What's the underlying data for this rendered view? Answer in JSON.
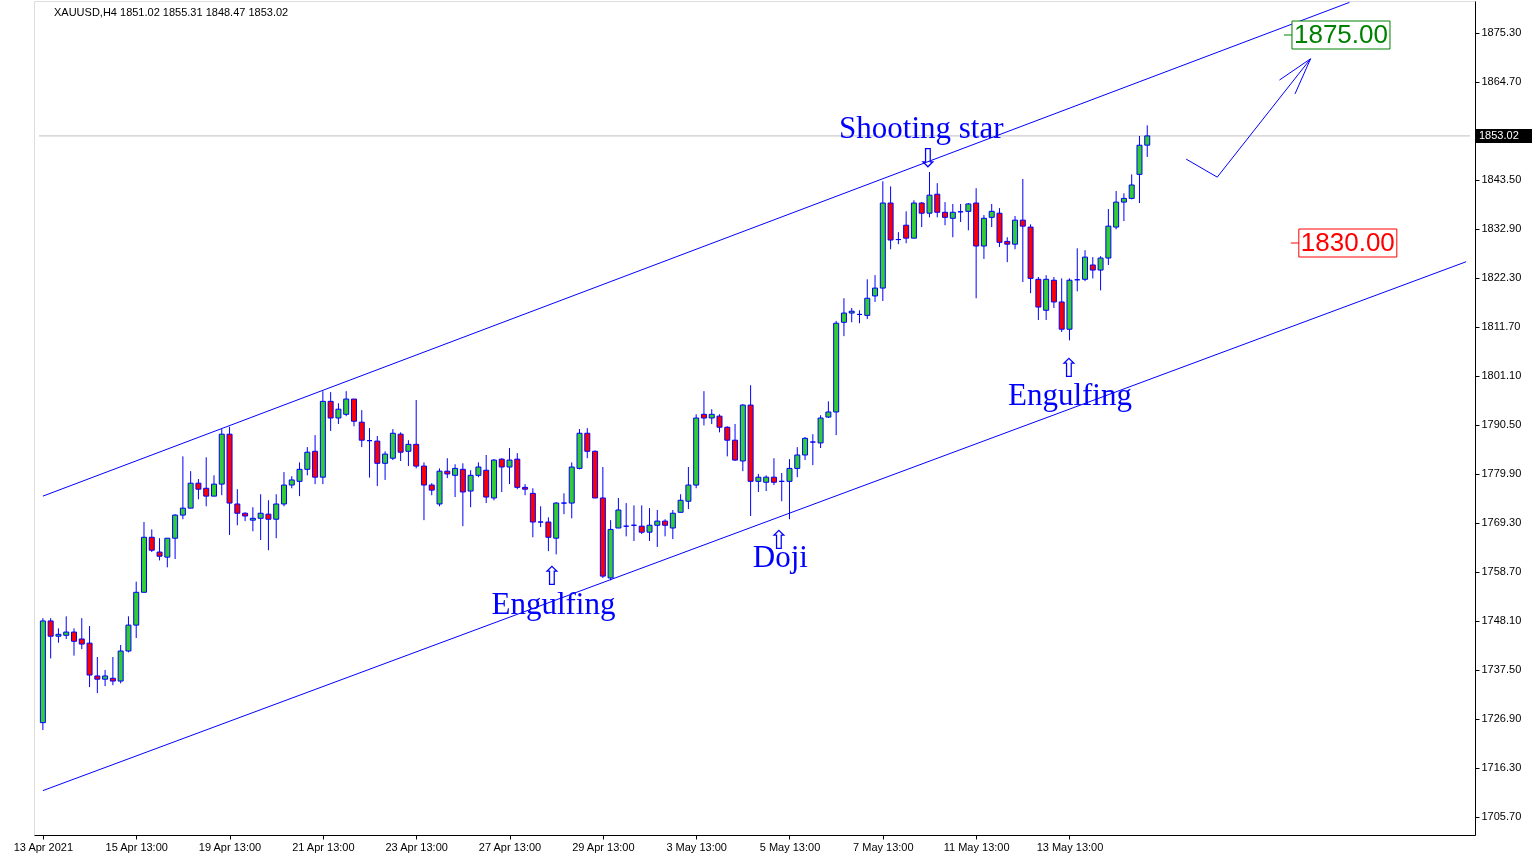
{
  "chart_data": {
    "type": "candlestick",
    "title": "XAUUSD,H4  1851.02 1855.31 1848.47 1853.02",
    "categories": [
      "13 Apr 2021",
      null,
      null,
      null,
      null,
      null,
      null,
      null,
      null,
      null,
      null,
      null,
      "15 Apr 13:00",
      null,
      null,
      null,
      null,
      null,
      null,
      null,
      null,
      null,
      null,
      null,
      "19 Apr 13:00",
      null,
      null,
      null,
      null,
      null,
      null,
      null,
      null,
      null,
      null,
      null,
      "21 Apr 13:00",
      null,
      null,
      null,
      null,
      null,
      null,
      null,
      null,
      null,
      null,
      null,
      "23 Apr 13:00",
      null,
      null,
      null,
      null,
      null,
      null,
      null,
      null,
      null,
      null,
      null,
      "27 Apr 13:00",
      null,
      null,
      null,
      null,
      null,
      null,
      null,
      null,
      null,
      null,
      null,
      "29 Apr 13:00",
      null,
      null,
      null,
      null,
      null,
      null,
      null,
      null,
      null,
      null,
      null,
      "3 May 13:00",
      null,
      null,
      null,
      null,
      null,
      null,
      null,
      null,
      null,
      null,
      null,
      "5 May 13:00",
      null,
      null,
      null,
      null,
      null,
      null,
      null,
      null,
      null,
      null,
      null,
      "7 May 13:00",
      null,
      null,
      null,
      null,
      null,
      null,
      null,
      null,
      null,
      null,
      null,
      "11 May 13:00",
      null,
      null,
      null,
      null,
      null,
      null,
      null,
      null,
      null,
      null,
      null,
      "13 May 13:00",
      null,
      null,
      null,
      null,
      null,
      null,
      null,
      null,
      null,
      null,
      null,
      null,
      null,
      null,
      null,
      null,
      null,
      null,
      null,
      null,
      null,
      null,
      null,
      null,
      null,
      null,
      null,
      null,
      null,
      null,
      null,
      null,
      null,
      null,
      null,
      null,
      null,
      null,
      null,
      null,
      null,
      null,
      null,
      null,
      null,
      null,
      null,
      null,
      null,
      null,
      null
    ],
    "ohlc": [
      [
        1726.1,
        1748.7,
        1724.5,
        1748.1
      ],
      [
        1748.1,
        1748.7,
        1740.0,
        1744.8
      ],
      [
        1744.8,
        1746.5,
        1743.4,
        1745.2
      ],
      [
        1745.0,
        1749.1,
        1744.2,
        1745.7
      ],
      [
        1745.7,
        1746.5,
        1740.6,
        1743.7
      ],
      [
        1744.2,
        1748.7,
        1742.0,
        1743.1
      ],
      [
        1743.3,
        1747.0,
        1733.8,
        1736.4
      ],
      [
        1736.2,
        1740.3,
        1732.5,
        1735.5
      ],
      [
        1735.5,
        1737.5,
        1734.0,
        1736.2
      ],
      [
        1735.7,
        1740.3,
        1734.2,
        1735.1
      ],
      [
        1735.1,
        1742.9,
        1734.6,
        1741.6
      ],
      [
        1741.6,
        1749.1,
        1741.3,
        1747.2
      ],
      [
        1747.2,
        1756.6,
        1744.4,
        1754.3
      ],
      [
        1754.3,
        1769.5,
        1754.3,
        1766.2
      ],
      [
        1766.2,
        1767.9,
        1763.0,
        1763.4
      ],
      [
        1763.0,
        1766.0,
        1761.2,
        1762.1
      ],
      [
        1761.9,
        1766.0,
        1759.7,
        1766.0
      ],
      [
        1766.0,
        1771.2,
        1761.5,
        1771.0
      ],
      [
        1771.0,
        1783.7,
        1770.1,
        1772.5
      ],
      [
        1772.5,
        1780.5,
        1772.5,
        1777.9
      ],
      [
        1777.9,
        1778.8,
        1774.4,
        1776.6
      ],
      [
        1776.8,
        1783.5,
        1772.9,
        1775.1
      ],
      [
        1775.1,
        1779.6,
        1775.1,
        1777.7
      ],
      [
        1777.7,
        1789.6,
        1775.3,
        1788.5
      ],
      [
        1788.5,
        1790.1,
        1766.7,
        1773.6
      ],
      [
        1773.4,
        1776.6,
        1768.8,
        1771.4
      ],
      [
        1771.4,
        1771.6,
        1769.7,
        1770.8
      ],
      [
        1769.9,
        1772.7,
        1767.5,
        1770.3
      ],
      [
        1770.3,
        1775.5,
        1765.6,
        1771.4
      ],
      [
        1771.2,
        1774.2,
        1763.4,
        1770.1
      ],
      [
        1770.1,
        1775.5,
        1766.0,
        1773.4
      ],
      [
        1773.4,
        1780.3,
        1772.9,
        1777.5
      ],
      [
        1777.5,
        1779.4,
        1776.8,
        1778.6
      ],
      [
        1778.3,
        1782.4,
        1775.1,
        1780.9
      ],
      [
        1780.9,
        1785.7,
        1779.6,
        1784.6
      ],
      [
        1784.8,
        1788.3,
        1777.7,
        1779.2
      ],
      [
        1779.2,
        1797.8,
        1777.7,
        1795.6
      ],
      [
        1795.6,
        1797.6,
        1789.2,
        1792.0
      ],
      [
        1792.0,
        1795.2,
        1790.7,
        1793.9
      ],
      [
        1792.8,
        1797.8,
        1792.4,
        1796.1
      ],
      [
        1796.1,
        1796.1,
        1790.2,
        1791.3
      ],
      [
        1791.1,
        1793.7,
        1785.7,
        1787.2
      ],
      [
        1787.1,
        1789.8,
        1779.1,
        1787.1
      ],
      [
        1787.0,
        1788.1,
        1777.3,
        1782.2
      ],
      [
        1782.2,
        1784.8,
        1778.6,
        1784.2
      ],
      [
        1783.3,
        1789.6,
        1782.9,
        1788.7
      ],
      [
        1788.5,
        1788.9,
        1782.7,
        1784.6
      ],
      [
        1784.8,
        1787.2,
        1781.6,
        1786.3
      ],
      [
        1786.3,
        1795.9,
        1781.1,
        1781.6
      ],
      [
        1781.6,
        1782.4,
        1769.9,
        1777.5
      ],
      [
        1777.5,
        1777.9,
        1775.3,
        1776.4
      ],
      [
        1773.4,
        1781.1,
        1772.9,
        1780.5
      ],
      [
        1780.5,
        1783.3,
        1779.0,
        1779.9
      ],
      [
        1779.6,
        1782.0,
        1774.9,
        1781.1
      ],
      [
        1780.9,
        1782.2,
        1768.6,
        1776.0
      ],
      [
        1776.2,
        1780.7,
        1772.7,
        1779.6
      ],
      [
        1779.6,
        1782.4,
        1779.2,
        1781.4
      ],
      [
        1780.7,
        1784.0,
        1773.6,
        1774.9
      ],
      [
        1774.7,
        1783.1,
        1774.2,
        1782.9
      ],
      [
        1783.1,
        1783.3,
        1776.0,
        1781.4
      ],
      [
        1781.4,
        1785.5,
        1777.7,
        1782.9
      ],
      [
        1783.1,
        1784.4,
        1776.6,
        1777.0
      ],
      [
        1777.0,
        1777.7,
        1775.3,
        1776.6
      ],
      [
        1775.7,
        1776.8,
        1766.2,
        1769.5
      ],
      [
        1769.5,
        1772.9,
        1768.4,
        1769.5
      ],
      [
        1769.5,
        1770.5,
        1763.2,
        1766.2
      ],
      [
        1766.0,
        1773.8,
        1762.5,
        1773.6
      ],
      [
        1773.6,
        1775.7,
        1771.2,
        1773.6
      ],
      [
        1773.6,
        1782.4,
        1770.3,
        1781.4
      ],
      [
        1781.1,
        1789.6,
        1780.9,
        1788.7
      ],
      [
        1788.7,
        1789.8,
        1783.3,
        1784.8
      ],
      [
        1784.8,
        1785.0,
        1774.7,
        1774.7
      ],
      [
        1774.7,
        1781.4,
        1757.4,
        1757.8
      ],
      [
        1757.4,
        1769.9,
        1756.9,
        1767.9
      ],
      [
        1768.2,
        1774.7,
        1768.2,
        1772.1
      ],
      [
        1768.6,
        1773.6,
        1766.4,
        1768.6
      ],
      [
        1768.8,
        1773.1,
        1765.4,
        1768.8
      ],
      [
        1768.6,
        1773.1,
        1766.9,
        1767.3
      ],
      [
        1767.3,
        1772.5,
        1765.4,
        1768.8
      ],
      [
        1768.8,
        1772.1,
        1764.1,
        1769.7
      ],
      [
        1769.7,
        1770.1,
        1766.4,
        1768.8
      ],
      [
        1768.2,
        1772.1,
        1765.8,
        1771.4
      ],
      [
        1771.6,
        1775.5,
        1771.6,
        1774.2
      ],
      [
        1774.0,
        1781.4,
        1772.3,
        1777.5
      ],
      [
        1777.5,
        1792.8,
        1776.8,
        1792.0
      ],
      [
        1792.8,
        1797.8,
        1790.4,
        1792.0
      ],
      [
        1792.0,
        1793.9,
        1790.7,
        1792.8
      ],
      [
        1792.4,
        1792.8,
        1788.9,
        1790.0
      ],
      [
        1790.0,
        1790.2,
        1783.7,
        1787.2
      ],
      [
        1787.2,
        1790.7,
        1782.7,
        1782.9
      ],
      [
        1782.7,
        1795.0,
        1780.5,
        1794.8
      ],
      [
        1794.8,
        1799.1,
        1770.8,
        1778.3
      ],
      [
        1778.3,
        1779.9,
        1776.0,
        1779.2
      ],
      [
        1778.1,
        1779.6,
        1776.2,
        1779.2
      ],
      [
        1779.2,
        1783.3,
        1777.5,
        1778.1
      ],
      [
        1778.3,
        1780.1,
        1774.0,
        1778.3
      ],
      [
        1778.3,
        1783.1,
        1770.1,
        1781.1
      ],
      [
        1781.1,
        1785.7,
        1779.2,
        1784.0
      ],
      [
        1784.0,
        1787.9,
        1782.9,
        1787.6
      ],
      [
        1786.8,
        1788.5,
        1781.8,
        1786.8
      ],
      [
        1786.6,
        1792.6,
        1785.5,
        1792.0
      ],
      [
        1792.2,
        1795.6,
        1792.0,
        1793.3
      ],
      [
        1793.3,
        1813.0,
        1788.3,
        1812.5
      ],
      [
        1812.7,
        1817.9,
        1809.7,
        1814.7
      ],
      [
        1814.7,
        1815.8,
        1812.7,
        1815.1
      ],
      [
        1814.4,
        1815.3,
        1812.5,
        1814.4
      ],
      [
        1814.2,
        1822.0,
        1813.4,
        1817.9
      ],
      [
        1818.4,
        1822.9,
        1817.1,
        1820.1
      ],
      [
        1820.1,
        1843.2,
        1817.3,
        1838.5
      ],
      [
        1838.5,
        1842.1,
        1828.5,
        1830.5
      ],
      [
        1830.6,
        1832.2,
        1829.6,
        1830.6
      ],
      [
        1833.7,
        1836.7,
        1829.8,
        1830.9
      ],
      [
        1830.9,
        1839.1,
        1830.9,
        1838.5
      ],
      [
        1838.5,
        1838.7,
        1833.3,
        1836.3
      ],
      [
        1836.3,
        1845.2,
        1835.4,
        1840.2
      ],
      [
        1840.4,
        1842.8,
        1835.4,
        1836.5
      ],
      [
        1836.5,
        1838.7,
        1833.7,
        1835.4
      ],
      [
        1835.2,
        1838.3,
        1831.1,
        1836.5
      ],
      [
        1836.6,
        1838.3,
        1834.4,
        1836.6
      ],
      [
        1836.7,
        1838.5,
        1832.6,
        1838.3
      ],
      [
        1838.5,
        1841.7,
        1817.9,
        1829.2
      ],
      [
        1829.2,
        1835.9,
        1826.4,
        1835.2
      ],
      [
        1835.4,
        1838.3,
        1833.3,
        1836.7
      ],
      [
        1836.3,
        1837.4,
        1829.0,
        1830.0
      ],
      [
        1830.2,
        1831.1,
        1825.7,
        1829.6
      ],
      [
        1829.6,
        1835.7,
        1828.5,
        1834.8
      ],
      [
        1834.8,
        1843.7,
        1821.4,
        1833.5
      ],
      [
        1833.3,
        1833.9,
        1819.0,
        1822.2
      ],
      [
        1822.0,
        1822.5,
        1813.2,
        1816.0
      ],
      [
        1815.3,
        1822.9,
        1813.2,
        1822.0
      ],
      [
        1821.8,
        1822.5,
        1815.8,
        1817.1
      ],
      [
        1817.1,
        1822.2,
        1810.6,
        1811.2
      ],
      [
        1811.2,
        1822.2,
        1808.8,
        1821.8
      ],
      [
        1821.9,
        1828.7,
        1819.4,
        1821.9
      ],
      [
        1822.0,
        1828.3,
        1821.6,
        1826.8
      ],
      [
        1825.1,
        1826.8,
        1822.2,
        1824.0
      ],
      [
        1824.0,
        1827.0,
        1819.6,
        1826.6
      ],
      [
        1826.6,
        1837.2,
        1825.1,
        1833.5
      ],
      [
        1833.3,
        1841.1,
        1832.8,
        1838.7
      ],
      [
        1838.7,
        1840.6,
        1834.6,
        1839.5
      ],
      [
        1839.5,
        1844.7,
        1839.3,
        1842.4
      ],
      [
        1844.7,
        1853.0,
        1838.5,
        1851.0
      ],
      [
        1851.02,
        1855.31,
        1848.47,
        1853.02
      ],
      null,
      null,
      null,
      null,
      null,
      null,
      null,
      null,
      null,
      null,
      null,
      null,
      null,
      null,
      null,
      null,
      null,
      null,
      null,
      null,
      null,
      null,
      null,
      null,
      null,
      null,
      null,
      null,
      null,
      null,
      null,
      null,
      null,
      null,
      null,
      null,
      null,
      null,
      null,
      null,
      null
    ],
    "ylim": [
      1701.8,
      1882.2
    ],
    "yticks": [
      {
        "value": 1875.3,
        "label": "1875.30"
      },
      {
        "value": 1864.7,
        "label": "1864.70"
      },
      {
        "value": 1843.5,
        "label": "1843.50"
      },
      {
        "value": 1832.9,
        "label": "1832.90"
      },
      {
        "value": 1822.3,
        "label": "1822.30"
      },
      {
        "value": 1811.7,
        "label": "1811.70"
      },
      {
        "value": 1801.1,
        "label": "1801.10"
      },
      {
        "value": 1790.5,
        "label": "1790.50"
      },
      {
        "value": 1779.9,
        "label": "1779.90"
      },
      {
        "value": 1769.3,
        "label": "1769.30"
      },
      {
        "value": 1758.7,
        "label": "1758.70"
      },
      {
        "value": 1748.1,
        "label": "1748.10"
      },
      {
        "value": 1737.5,
        "label": "1737.50"
      },
      {
        "value": 1726.9,
        "label": "1726.90"
      },
      {
        "value": 1716.3,
        "label": "1716.30"
      },
      {
        "value": 1705.7,
        "label": "1705.70"
      }
    ],
    "ref_lines": [
      {
        "axis": "y",
        "value": 1853.02,
        "label": "1853.02",
        "color": "#c0c0c0"
      }
    ],
    "series": [
      {
        "type": "line",
        "color": "#0000ff",
        "values": [
          1775.1,
          null,
          null,
          null,
          null,
          null,
          null,
          null,
          null,
          null,
          null,
          null,
          null,
          null,
          null,
          null,
          null,
          null,
          null,
          null,
          null,
          null,
          null,
          null,
          null,
          null,
          null,
          null,
          null,
          null,
          null,
          null,
          null,
          null,
          null,
          null,
          null,
          null,
          null,
          null,
          null,
          null,
          null,
          null,
          null,
          null,
          null,
          null,
          null,
          null,
          null,
          null,
          null,
          null,
          null,
          null,
          null,
          null,
          null,
          null,
          null,
          null,
          null,
          null,
          null,
          null,
          null,
          null,
          null,
          null,
          null,
          null,
          null,
          null,
          null,
          null,
          null,
          null,
          null,
          null,
          null,
          null,
          null,
          null,
          null,
          null,
          null,
          null,
          null,
          null,
          null,
          null,
          null,
          null,
          null,
          null,
          null,
          null,
          null,
          null,
          null,
          null,
          null,
          null,
          null,
          null,
          null,
          null,
          null,
          null,
          null,
          null,
          null,
          null,
          null,
          null,
          null,
          null,
          null,
          null,
          null,
          null,
          null,
          null,
          null,
          null,
          null,
          null,
          null,
          null,
          null,
          null,
          null,
          null,
          null,
          null,
          null,
          null,
          null,
          null,
          null,
          null,
          null,
          null,
          null,
          null,
          null,
          null,
          null,
          null,
          null,
          null,
          null,
          null,
          null,
          null,
          null,
          null,
          null,
          null,
          null,
          null,
          null,
          null,
          null,
          null,
          null,
          null,
          1881.9,
          null,
          null,
          null,
          null,
          null,
          null,
          null,
          null,
          null,
          null,
          null,
          null,
          null,
          null,
          null
        ]
      },
      {
        "type": "line",
        "color": "#0000ff",
        "values": [
          1711.4,
          null,
          null,
          null,
          null,
          null,
          null,
          null,
          null,
          null,
          null,
          null,
          null,
          null,
          null,
          null,
          null,
          null,
          null,
          null,
          null,
          null,
          null,
          null,
          null,
          null,
          null,
          null,
          null,
          null,
          null,
          null,
          null,
          null,
          null,
          null,
          null,
          null,
          null,
          null,
          null,
          null,
          null,
          null,
          null,
          null,
          null,
          null,
          null,
          null,
          null,
          null,
          null,
          null,
          null,
          null,
          null,
          null,
          null,
          null,
          null,
          null,
          null,
          null,
          null,
          null,
          null,
          null,
          null,
          null,
          null,
          null,
          null,
          null,
          null,
          null,
          null,
          null,
          null,
          null,
          null,
          null,
          null,
          null,
          null,
          null,
          null,
          null,
          null,
          null,
          null,
          null,
          null,
          null,
          null,
          null,
          null,
          null,
          null,
          null,
          null,
          null,
          null,
          null,
          null,
          null,
          null,
          null,
          null,
          null,
          null,
          null,
          null,
          null,
          null,
          null,
          null,
          null,
          null,
          null,
          null,
          null,
          null,
          null,
          null,
          null,
          null,
          null,
          null,
          null,
          null,
          null,
          null,
          null,
          null,
          null,
          null,
          null,
          null,
          null,
          null,
          null,
          null,
          null,
          null,
          null,
          null,
          null,
          null,
          null,
          null,
          null,
          null,
          null,
          null,
          null,
          null,
          null,
          null,
          null,
          null,
          null,
          null,
          null,
          null,
          null,
          null,
          null,
          null,
          null,
          null,
          null,
          null,
          null,
          null,
          null,
          null,
          null,
          null,
          null,
          null,
          null,
          null,
          1825.8
        ]
      },
      {
        "type": "line",
        "color": "#0000ff",
        "values": [
          null,
          null,
          null,
          null,
          null,
          null,
          null,
          null,
          null,
          null,
          null,
          null,
          null,
          null,
          null,
          null,
          null,
          null,
          null,
          null,
          null,
          null,
          null,
          null,
          null,
          null,
          null,
          null,
          null,
          null,
          null,
          null,
          null,
          null,
          null,
          null,
          null,
          null,
          null,
          null,
          null,
          null,
          null,
          null,
          null,
          null,
          null,
          null,
          null,
          null,
          null,
          null,
          null,
          null,
          null,
          null,
          null,
          null,
          null,
          null,
          null,
          null,
          null,
          null,
          null,
          null,
          null,
          null,
          null,
          null,
          null,
          null,
          null,
          null,
          null,
          null,
          null,
          null,
          null,
          null,
          null,
          null,
          null,
          null,
          null,
          null,
          null,
          null,
          null,
          null,
          null,
          null,
          null,
          null,
          null,
          null,
          null,
          null,
          null,
          null,
          null,
          null,
          null,
          null,
          null,
          null,
          null,
          null,
          null,
          null,
          null,
          null,
          null,
          null,
          null,
          null,
          null,
          null,
          null,
          null,
          null,
          null,
          null,
          null,
          null,
          null,
          null,
          null,
          null,
          null,
          null,
          null,
          null,
          null,
          null,
          null,
          null,
          null,
          null,
          null,
          null,
          null,
          null,
          null,
          null,
          null,
          null,
          1848.0,
          null,
          null,
          null,
          1844.1,
          null,
          null,
          null,
          null,
          null,
          null,
          null,
          null,
          null,
          null,
          null,
          1869.7,
          null,
          null,
          null,
          null,
          null,
          null,
          null,
          null,
          null,
          null,
          null,
          null,
          null,
          null,
          null,
          null,
          null,
          null,
          null,
          null
        ]
      },
      {
        "type": "line",
        "color": "#0000ff",
        "values": [
          null,
          null,
          null,
          null,
          null,
          null,
          null,
          null,
          null,
          null,
          null,
          null,
          null,
          null,
          null,
          null,
          null,
          null,
          null,
          null,
          null,
          null,
          null,
          null,
          null,
          null,
          null,
          null,
          null,
          null,
          null,
          null,
          null,
          null,
          null,
          null,
          null,
          null,
          null,
          null,
          null,
          null,
          null,
          null,
          null,
          null,
          null,
          null,
          null,
          null,
          null,
          null,
          null,
          null,
          null,
          null,
          null,
          null,
          null,
          null,
          null,
          null,
          null,
          null,
          null,
          null,
          null,
          null,
          null,
          null,
          null,
          null,
          null,
          null,
          null,
          null,
          null,
          null,
          null,
          null,
          null,
          null,
          null,
          null,
          null,
          null,
          null,
          null,
          null,
          null,
          null,
          null,
          null,
          null,
          null,
          null,
          null,
          null,
          null,
          null,
          null,
          null,
          null,
          null,
          null,
          null,
          null,
          null,
          null,
          null,
          null,
          null,
          null,
          null,
          null,
          null,
          null,
          null,
          null,
          null,
          null,
          null,
          null,
          null,
          null,
          null,
          null,
          null,
          null,
          null,
          null,
          null,
          null,
          null,
          null,
          null,
          null,
          null,
          null,
          null,
          null,
          null,
          null,
          null,
          null,
          null,
          null,
          null,
          null,
          null,
          null,
          null,
          null,
          null,
          null,
          null,
          null,
          null,
          null,
          1865.1,
          null,
          null,
          null,
          1869.7,
          null,
          null,
          null,
          null,
          null,
          null,
          null,
          null,
          null,
          null,
          null,
          null,
          null,
          null,
          null,
          null,
          null,
          null,
          null,
          null
        ]
      },
      {
        "type": "line",
        "color": "#0000ff",
        "values": [
          null,
          null,
          null,
          null,
          null,
          null,
          null,
          null,
          null,
          null,
          null,
          null,
          null,
          null,
          null,
          null,
          null,
          null,
          null,
          null,
          null,
          null,
          null,
          null,
          null,
          null,
          null,
          null,
          null,
          null,
          null,
          null,
          null,
          null,
          null,
          null,
          null,
          null,
          null,
          null,
          null,
          null,
          null,
          null,
          null,
          null,
          null,
          null,
          null,
          null,
          null,
          null,
          null,
          null,
          null,
          null,
          null,
          null,
          null,
          null,
          null,
          null,
          null,
          null,
          null,
          null,
          null,
          null,
          null,
          null,
          null,
          null,
          null,
          null,
          null,
          null,
          null,
          null,
          null,
          null,
          null,
          null,
          null,
          null,
          null,
          null,
          null,
          null,
          null,
          null,
          null,
          null,
          null,
          null,
          null,
          null,
          null,
          null,
          null,
          null,
          null,
          null,
          null,
          null,
          null,
          null,
          null,
          null,
          null,
          null,
          null,
          null,
          null,
          null,
          null,
          null,
          null,
          null,
          null,
          null,
          null,
          null,
          null,
          null,
          null,
          null,
          null,
          null,
          null,
          null,
          null,
          null,
          null,
          null,
          null,
          null,
          null,
          null,
          null,
          null,
          null,
          null,
          null,
          null,
          null,
          null,
          null,
          null,
          null,
          null,
          null,
          null,
          null,
          null,
          null,
          null,
          null,
          null,
          null,
          null,
          null,
          1862.1,
          null,
          1869.7,
          null,
          null,
          null,
          null,
          null,
          null,
          null,
          null,
          null,
          null,
          null,
          null,
          null,
          null,
          null,
          null,
          null,
          null,
          null,
          null
        ]
      }
    ],
    "annotations": [
      "Shooting star",
      "⇩",
      "⇧",
      "Engulfing",
      "⇧",
      "Doji",
      "⇧",
      "Engulfing",
      "1875.00",
      "1830.00"
    ]
  }
}
